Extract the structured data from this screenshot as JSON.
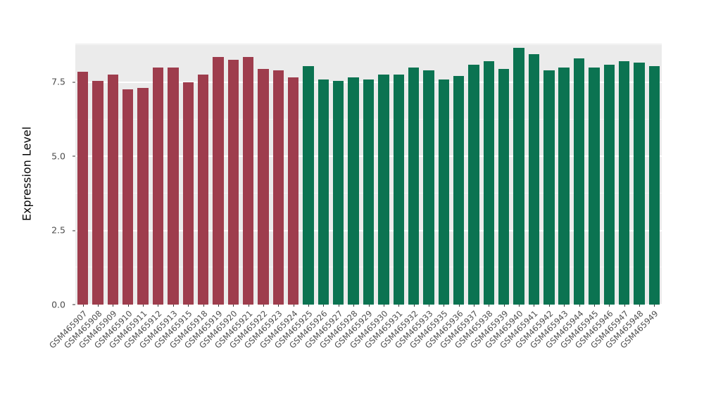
{
  "figure": {
    "background": "#FFFFFF"
  },
  "y_axis": {
    "title": "Expression Level"
  },
  "chart_data": {
    "type": "bar",
    "title": "",
    "xlabel": "",
    "ylabel": "Expression Level",
    "ylim": [
      0,
      8.8
    ],
    "grid": "on",
    "legend": "none",
    "panel_background": "#EBEBEB",
    "major_gridline_color": "#FFFFFF",
    "minor_gridline_color": "#F5F5F5",
    "y_major_ticks": [
      0,
      2.5,
      5.0,
      7.5
    ],
    "y_major_tick_labels": [
      "0.0",
      "2.5",
      "5.0",
      "7.5"
    ],
    "y_minor_ticks": [
      1.25,
      3.75,
      6.25,
      8.75
    ],
    "group_colors": {
      "group1": "#9E3D4D",
      "group2": "#0B7351"
    },
    "points": [
      {
        "label": "GSM465907",
        "value": 7.85,
        "group": "group1"
      },
      {
        "label": "GSM465908",
        "value": 7.55,
        "group": "group1"
      },
      {
        "label": "GSM465909",
        "value": 7.75,
        "group": "group1"
      },
      {
        "label": "GSM465910",
        "value": 7.25,
        "group": "group1"
      },
      {
        "label": "GSM465911",
        "value": 7.3,
        "group": "group1"
      },
      {
        "label": "GSM465912",
        "value": 8.0,
        "group": "group1"
      },
      {
        "label": "GSM465913",
        "value": 8.0,
        "group": "group1"
      },
      {
        "label": "GSM465915",
        "value": 7.5,
        "group": "group1"
      },
      {
        "label": "GSM465918",
        "value": 7.75,
        "group": "group1"
      },
      {
        "label": "GSM465919",
        "value": 8.35,
        "group": "group1"
      },
      {
        "label": "GSM465920",
        "value": 8.25,
        "group": "group1"
      },
      {
        "label": "GSM465921",
        "value": 8.35,
        "group": "group1"
      },
      {
        "label": "GSM465922",
        "value": 7.95,
        "group": "group1"
      },
      {
        "label": "GSM465923",
        "value": 7.9,
        "group": "group1"
      },
      {
        "label": "GSM465924",
        "value": 7.65,
        "group": "group1"
      },
      {
        "label": "GSM465925",
        "value": 8.05,
        "group": "group2"
      },
      {
        "label": "GSM465926",
        "value": 7.6,
        "group": "group2"
      },
      {
        "label": "GSM465927",
        "value": 7.55,
        "group": "group2"
      },
      {
        "label": "GSM465928",
        "value": 7.65,
        "group": "group2"
      },
      {
        "label": "GSM465929",
        "value": 7.6,
        "group": "group2"
      },
      {
        "label": "GSM465930",
        "value": 7.75,
        "group": "group2"
      },
      {
        "label": "GSM465931",
        "value": 7.75,
        "group": "group2"
      },
      {
        "label": "GSM465932",
        "value": 8.0,
        "group": "group2"
      },
      {
        "label": "GSM465933",
        "value": 7.9,
        "group": "group2"
      },
      {
        "label": "GSM465935",
        "value": 7.6,
        "group": "group2"
      },
      {
        "label": "GSM465936",
        "value": 7.7,
        "group": "group2"
      },
      {
        "label": "GSM465937",
        "value": 8.1,
        "group": "group2"
      },
      {
        "label": "GSM465938",
        "value": 8.2,
        "group": "group2"
      },
      {
        "label": "GSM465939",
        "value": 7.95,
        "group": "group2"
      },
      {
        "label": "GSM465940",
        "value": 8.65,
        "group": "group2"
      },
      {
        "label": "GSM465941",
        "value": 8.45,
        "group": "group2"
      },
      {
        "label": "GSM465942",
        "value": 7.9,
        "group": "group2"
      },
      {
        "label": "GSM465943",
        "value": 8.0,
        "group": "group2"
      },
      {
        "label": "GSM465944",
        "value": 8.3,
        "group": "group2"
      },
      {
        "label": "GSM465945",
        "value": 8.0,
        "group": "group2"
      },
      {
        "label": "GSM465946",
        "value": 8.1,
        "group": "group2"
      },
      {
        "label": "GSM465947",
        "value": 8.2,
        "group": "group2"
      },
      {
        "label": "GSM465948",
        "value": 8.15,
        "group": "group2"
      },
      {
        "label": "GSM465949",
        "value": 8.05,
        "group": "group2"
      }
    ]
  }
}
